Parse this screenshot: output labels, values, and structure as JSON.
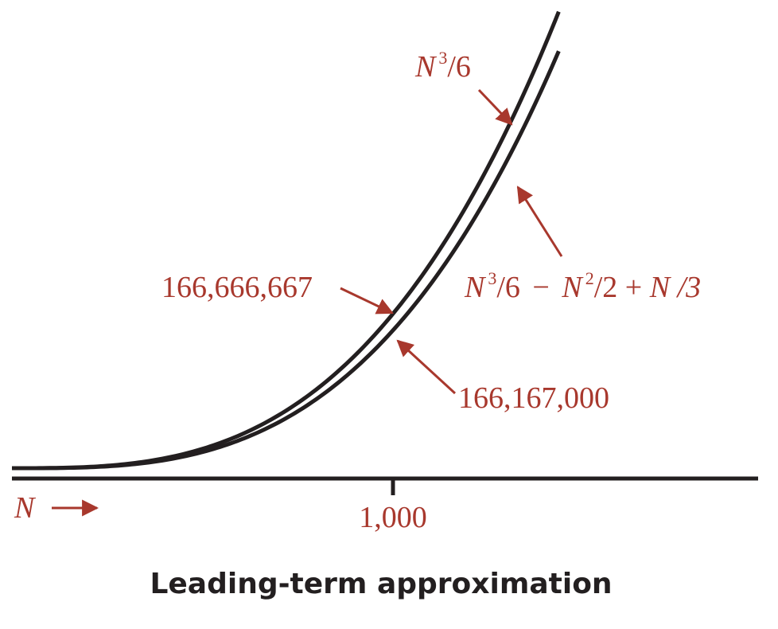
{
  "chart_data": {
    "type": "line",
    "title": "Leading-term approximation",
    "x_axis": {
      "variable": "N",
      "tick_labels": [
        "1,000"
      ],
      "tick_values": [
        1000
      ],
      "range": [
        0,
        2000
      ]
    },
    "series": [
      {
        "name": "N 3/6",
        "name_parts": {
          "base": "N",
          "exp": "3",
          "rest": "/6"
        },
        "formula": "N^3/6",
        "value_at_tick": "166,666,667"
      },
      {
        "name": "N 3/6 − N 2/2 + N /3",
        "name_parts": {
          "t1_base": "N",
          "t1_exp": "3",
          "t1_rest": "/6 ",
          "op1": "−",
          "t2_base": " N",
          "t2_exp": "2",
          "t2_rest": "/2 ",
          "op2": "+",
          "t3": " N /3"
        },
        "formula": "N^3/6 - N^2/2 + N/3",
        "value_at_tick": "166,167,000"
      }
    ],
    "annotations": {
      "upper_value": "166,666,667",
      "lower_value": "166,167,000"
    },
    "colors": {
      "curve": "#231f20",
      "annotation": "#a8382d",
      "title": "#231f20"
    }
  }
}
